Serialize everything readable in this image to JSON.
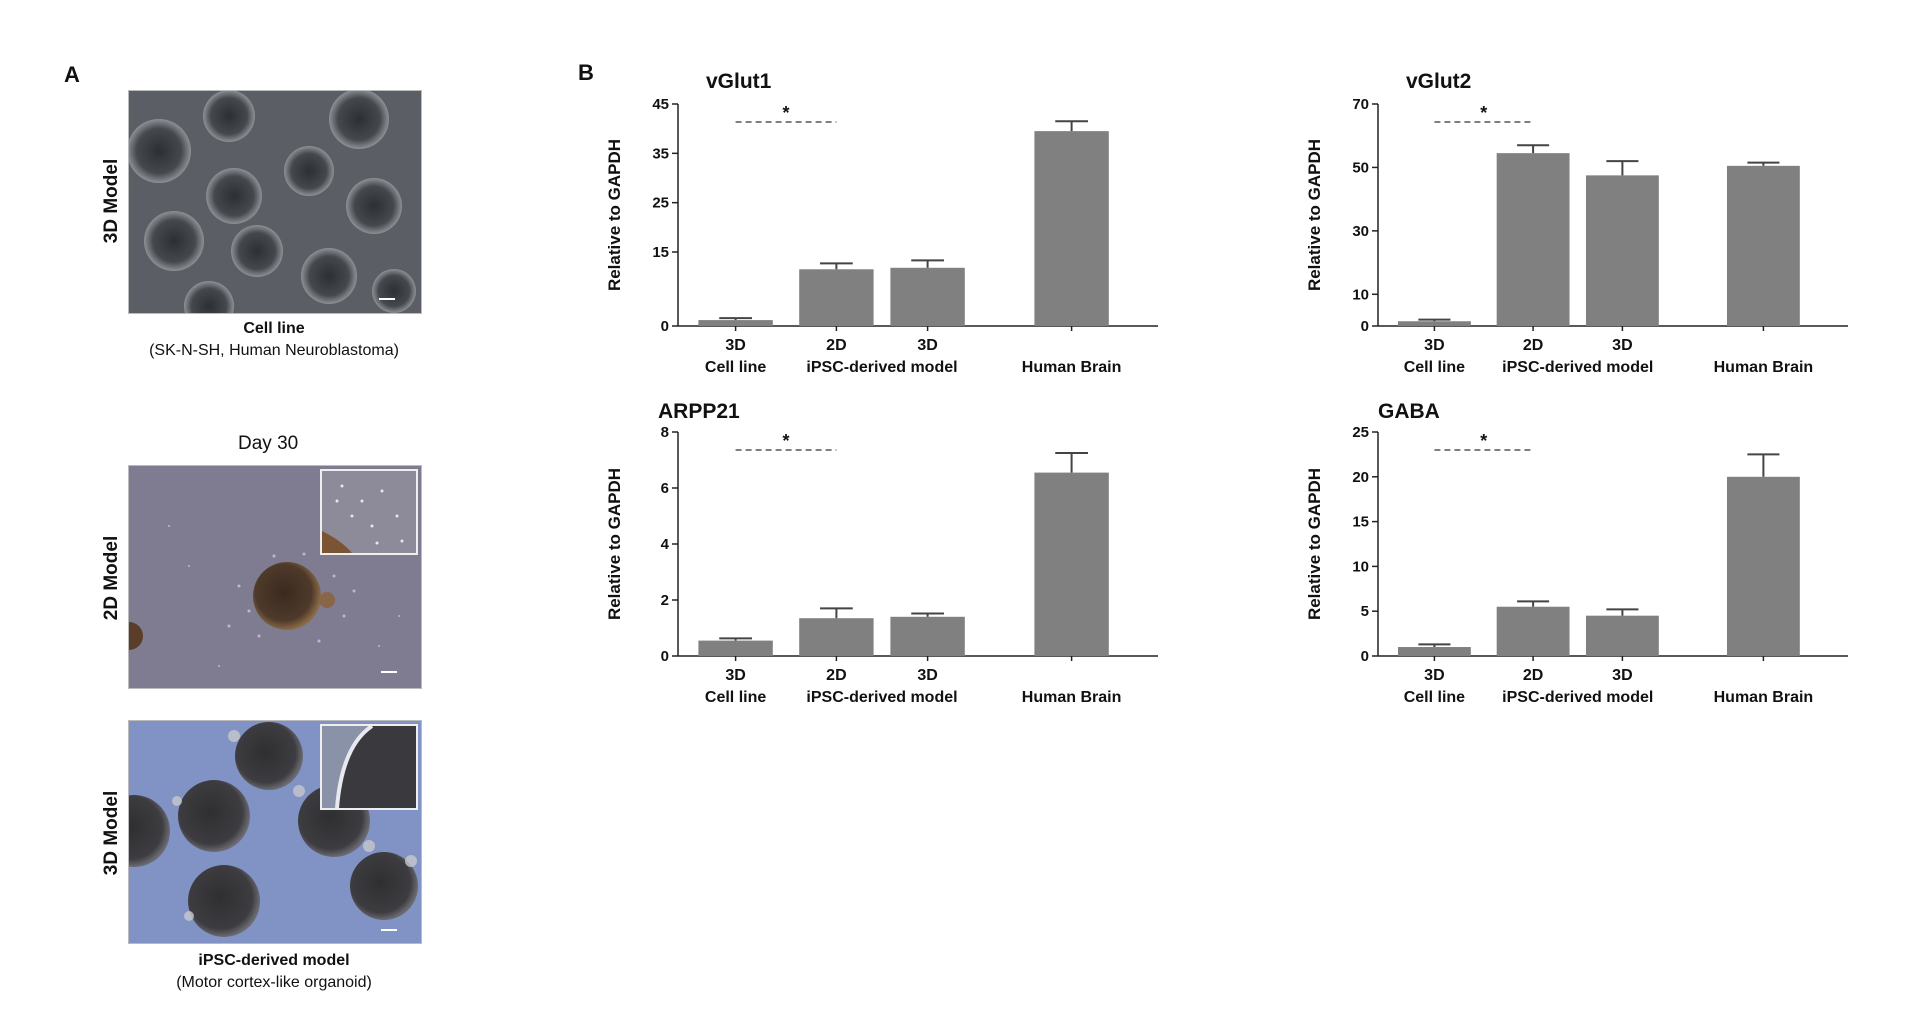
{
  "panel_a": {
    "letter": "A",
    "top_row_label": "3D Model",
    "top_caption_title": "Cell line",
    "top_caption_sub": "(SK-N-SH, Human Neuroblastoma)",
    "day_label": "Day 30",
    "mid_row_label": "2D Model",
    "bottom_row_label": "3D Model",
    "bottom_caption_title": "iPSC-derived model",
    "bottom_caption_sub": "(Motor cortex-like organoid)"
  },
  "panel_b": {
    "letter": "B",
    "group_labels": [
      "Cell line",
      "iPSC-derived model",
      "Human Brain"
    ]
  },
  "chart_data": [
    {
      "type": "bar",
      "title": "vGlut1",
      "ylabel": "Relative to GAPDH",
      "categories": [
        "3D",
        "2D",
        "3D",
        ""
      ],
      "values": [
        1.2,
        11.5,
        11.8,
        39.5
      ],
      "errors": [
        0.4,
        1.2,
        1.5,
        2.0
      ],
      "yticks": [
        0,
        15,
        25,
        35,
        45
      ],
      "ylim": [
        0,
        45
      ],
      "significance": "*",
      "color": "#808080"
    },
    {
      "type": "bar",
      "title": "vGlut2",
      "ylabel": "Relative to GAPDH",
      "categories": [
        "3D",
        "2D",
        "3D",
        ""
      ],
      "values": [
        1.5,
        54.5,
        47.5,
        50.5
      ],
      "errors": [
        0.5,
        2.5,
        4.5,
        1.0
      ],
      "yticks": [
        0,
        10,
        30,
        50,
        70
      ],
      "ylim": [
        0,
        70
      ],
      "significance": "*",
      "color": "#808080"
    },
    {
      "type": "bar",
      "title": "ARPP21",
      "ylabel": "Relative to GAPDH",
      "categories": [
        "3D",
        "2D",
        "3D",
        ""
      ],
      "values": [
        0.55,
        1.35,
        1.4,
        6.55
      ],
      "errors": [
        0.08,
        0.35,
        0.12,
        0.7
      ],
      "yticks": [
        0,
        2,
        4,
        6,
        8
      ],
      "ylim": [
        0,
        8
      ],
      "significance": "*",
      "color": "#808080"
    },
    {
      "type": "bar",
      "title": "GABA",
      "ylabel": "Relative to GAPDH",
      "categories": [
        "3D",
        "2D",
        "3D",
        ""
      ],
      "values": [
        1.0,
        5.5,
        4.5,
        20.0
      ],
      "errors": [
        0.3,
        0.6,
        0.7,
        2.5
      ],
      "yticks": [
        0,
        5,
        10,
        15,
        20,
        25
      ],
      "ylim": [
        0,
        25
      ],
      "significance": "*",
      "color": "#808080"
    }
  ]
}
